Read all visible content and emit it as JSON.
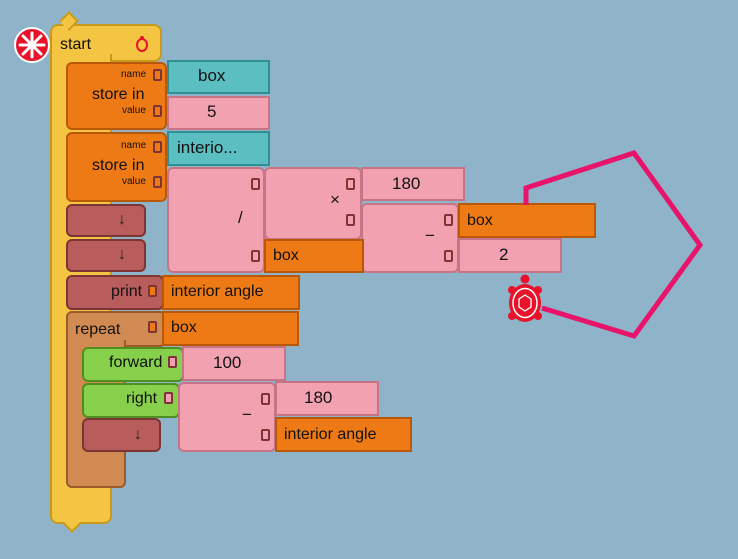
{
  "start_block": {
    "label": "start",
    "icon": "turtle-icon"
  },
  "store1": {
    "label": "store in",
    "name_label": "name",
    "value_label": "value",
    "name_value": "box",
    "value_value": "5"
  },
  "store2": {
    "label": "store in",
    "name_label": "name",
    "value_label": "value",
    "name_value": "interio...",
    "op_divide": "/",
    "op_multiply": "×",
    "op_minus": "−",
    "num_180": "180",
    "var_box": "box",
    "var_box2": "box",
    "num_2": "2"
  },
  "stubs": {
    "arrow1": "↓",
    "arrow2": "↓",
    "arrow3": "↓"
  },
  "print_block": {
    "label": "print",
    "value": "interior angle"
  },
  "repeat_block": {
    "label": "repeat",
    "value": "box"
  },
  "forward_block": {
    "label": "forward",
    "value": "100"
  },
  "right_block": {
    "label": "right",
    "op_minus": "−",
    "num_180": "180",
    "value": "interior angle"
  },
  "colors": {
    "canvas": "#8fb4c9",
    "path": "#e8136a",
    "turtle": "#e8132a"
  }
}
